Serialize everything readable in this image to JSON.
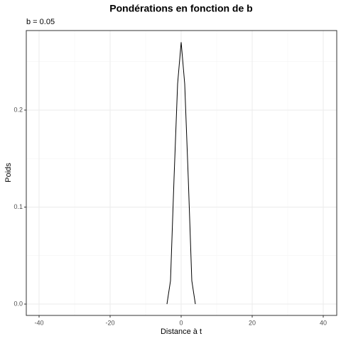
{
  "chart_data": {
    "type": "line",
    "title": "Pondérations en fonction de b",
    "subtitle": "b = 0.05",
    "x_label": "Distance à t",
    "y_label": "Poids",
    "series": [
      {
        "color": "#000000",
        "x": [
          -4,
          -3,
          -2,
          -1,
          0,
          1,
          2,
          3,
          4
        ],
        "values": [
          0,
          0.024,
          0.13,
          0.227,
          0.27,
          0.227,
          0.13,
          0.024,
          0
        ]
      }
    ],
    "xlim": [
      -43.6,
      43.8
    ],
    "xticks": [
      -40,
      -20,
      0,
      20,
      40
    ],
    "ylim": [
      -0.0117,
      0.282
    ],
    "yticks": [
      {
        "value": 0,
        "label": "0.0"
      },
      0.1,
      0.2
    ],
    "grid": true
  }
}
